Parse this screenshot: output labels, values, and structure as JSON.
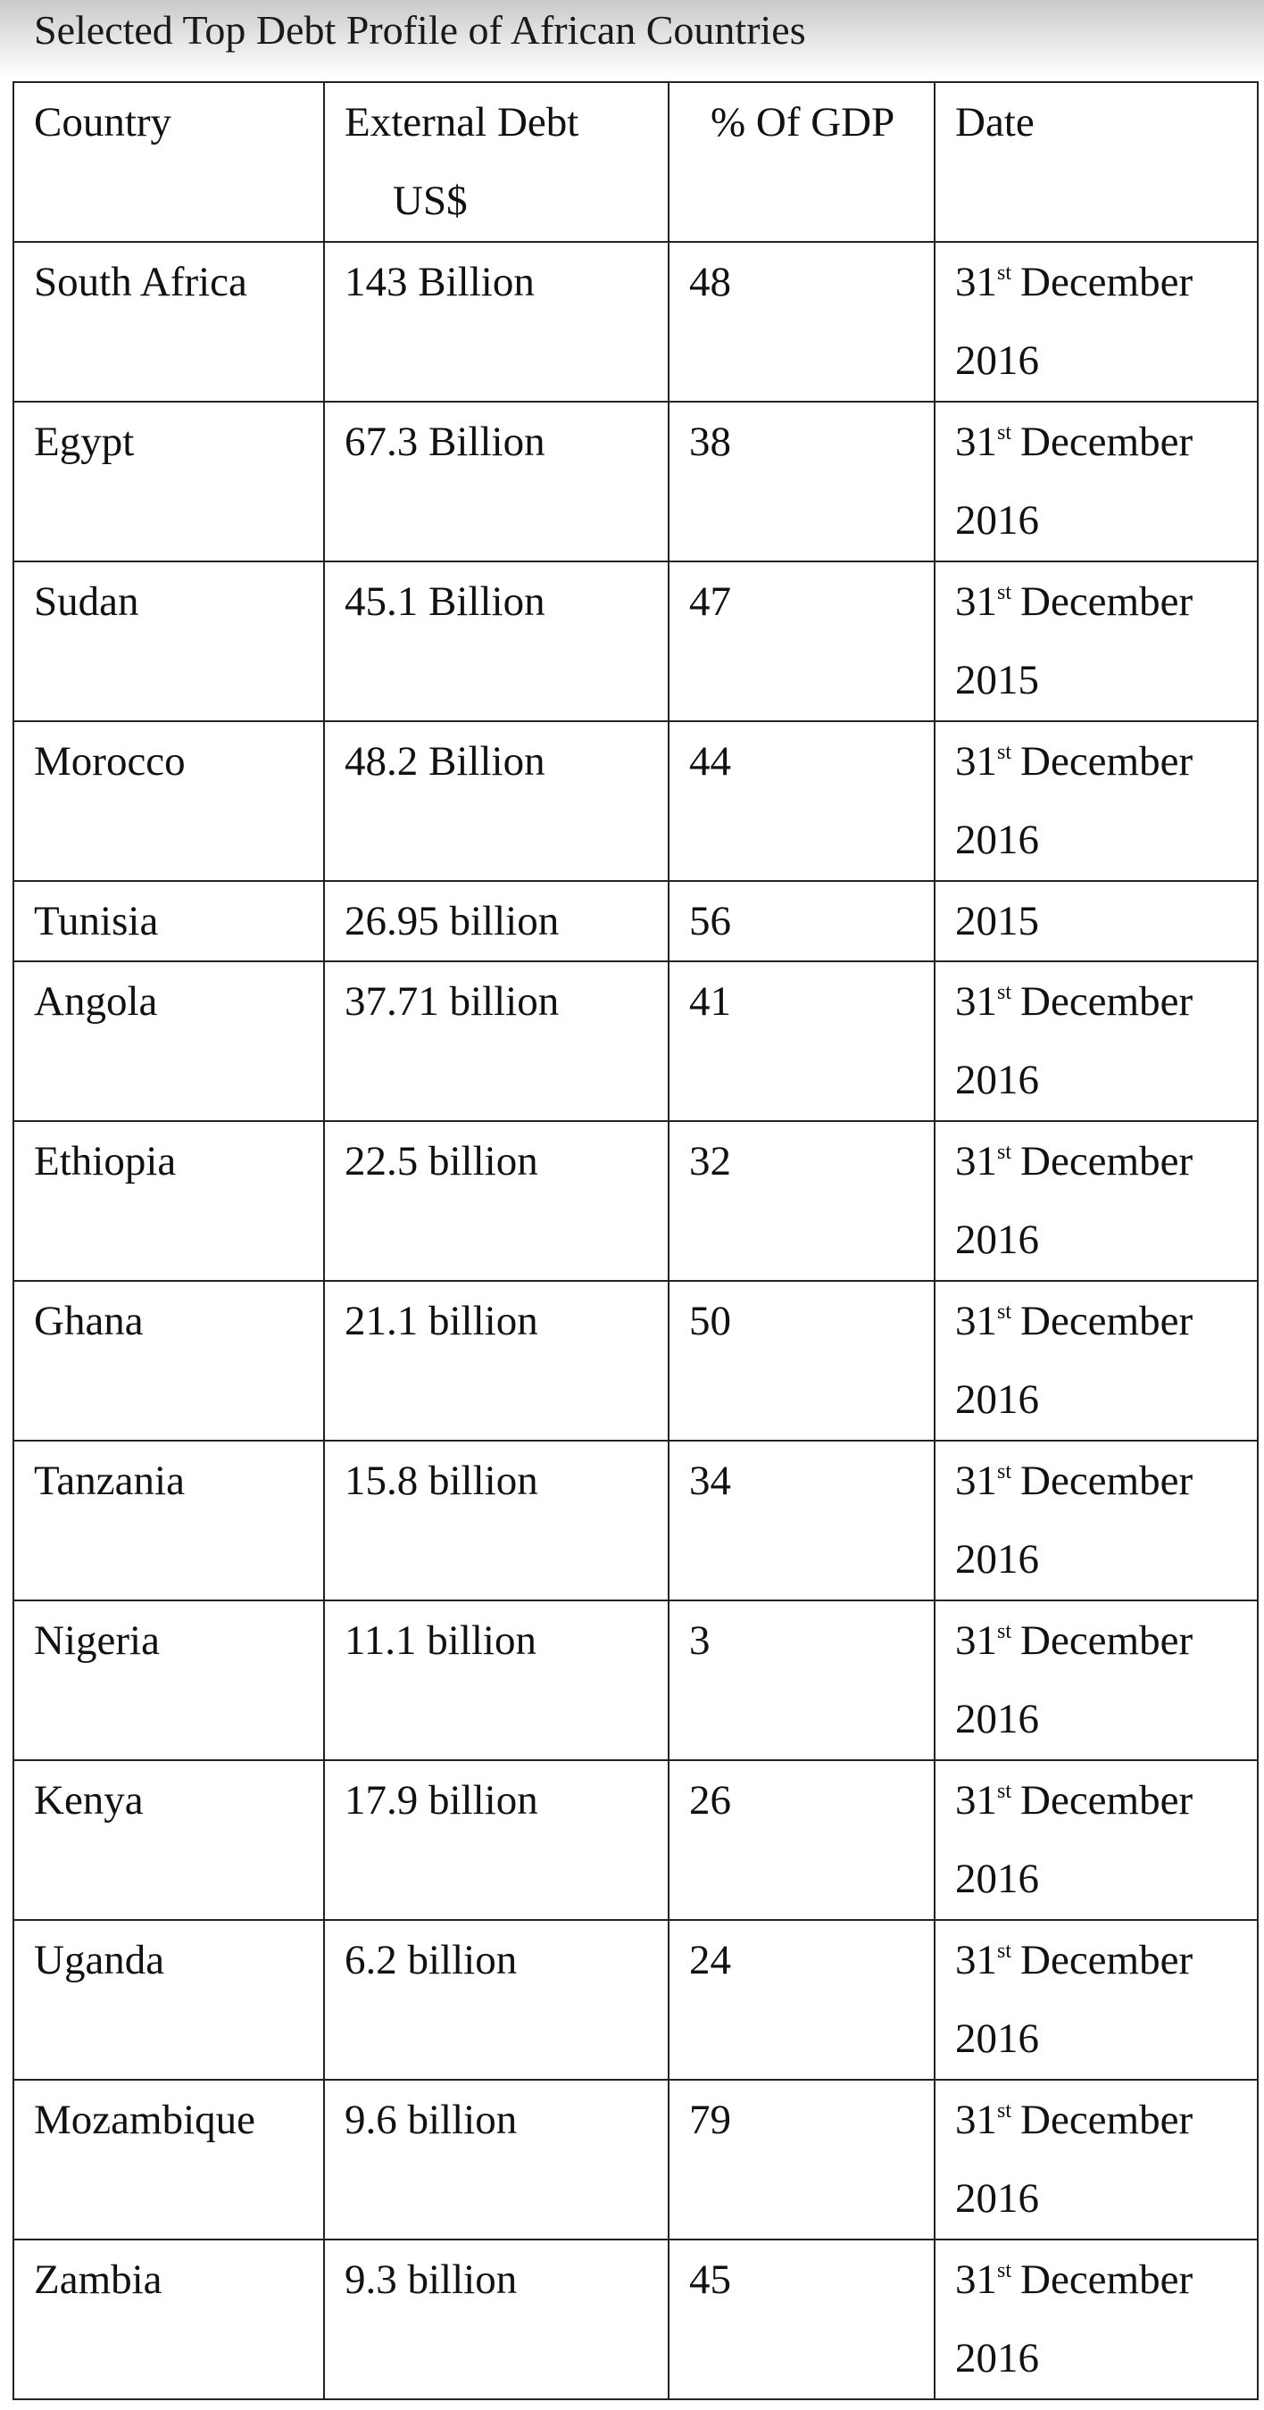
{
  "title": "Selected Top Debt Profile of African Countries",
  "table": {
    "headers": {
      "country": "Country",
      "debt_line1": "External Debt",
      "debt_line2": "US$",
      "gdp": "% Of GDP",
      "date": "Date"
    },
    "rows": [
      {
        "country": "South Africa",
        "debt": "143 Billion",
        "gdp": "48",
        "date_day": "31",
        "date_suffix": "st",
        "date_month": "December",
        "date_year": "2016"
      },
      {
        "country": "Egypt",
        "debt": "67.3 Billion",
        "gdp": "38",
        "date_day": "31",
        "date_suffix": "st",
        "date_month": "December",
        "date_year": "2016"
      },
      {
        "country": "Sudan",
        "debt": "45.1 Billion",
        "gdp": "47",
        "date_day": "31",
        "date_suffix": "st",
        "date_month": "December",
        "date_year": "2015"
      },
      {
        "country": "Morocco",
        "debt": "48.2 Billion",
        "gdp": "44",
        "date_day": "31",
        "date_suffix": "st",
        "date_month": "December",
        "date_year": "2016"
      },
      {
        "country": "Tunisia",
        "debt": "26.95 billion",
        "gdp": "56",
        "date_year": "2015"
      },
      {
        "country": "Angola",
        "debt": "37.71 billion",
        "gdp": "41",
        "date_day": "31",
        "date_suffix": "st",
        "date_month": "December",
        "date_year": "2016"
      },
      {
        "country": "Ethiopia",
        "debt": "22.5 billion",
        "gdp": "32",
        "date_day": "31",
        "date_suffix": "st",
        "date_month": "December",
        "date_year": "2016"
      },
      {
        "country": "Ghana",
        "debt": "21.1 billion",
        "gdp": "50",
        "date_day": "31",
        "date_suffix": "st",
        "date_month": "December",
        "date_year": "2016"
      },
      {
        "country": "Tanzania",
        "debt": "15.8 billion",
        "gdp": "34",
        "date_day": "31",
        "date_suffix": "st",
        "date_month": "December",
        "date_year": "2016"
      },
      {
        "country": "Nigeria",
        "debt": "11.1 billion",
        "gdp": "3",
        "date_day": "31",
        "date_suffix": "st",
        "date_month": "December",
        "date_year": "2016"
      },
      {
        "country": "Kenya",
        "debt": "17.9 billion",
        "gdp": "26",
        "date_day": "31",
        "date_suffix": "st",
        "date_month": "December",
        "date_year": "2016"
      },
      {
        "country": "Uganda",
        "debt": "6.2 billion",
        "gdp": "24",
        "date_day": "31",
        "date_suffix": "st",
        "date_month": "December",
        "date_year": "2016"
      },
      {
        "country": "Mozambique",
        "debt": "9.6 billion",
        "gdp": "79",
        "date_day": "31",
        "date_suffix": "st",
        "date_month": "December",
        "date_year": "2016"
      },
      {
        "country": "Zambia",
        "debt": "9.3 billion",
        "gdp": "45",
        "date_day": "31",
        "date_suffix": "st",
        "date_month": "December",
        "date_year": "2016"
      }
    ]
  }
}
